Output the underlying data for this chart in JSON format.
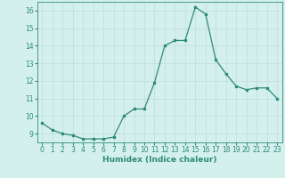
{
  "x": [
    0,
    1,
    2,
    3,
    4,
    5,
    6,
    7,
    8,
    9,
    10,
    11,
    12,
    13,
    14,
    15,
    16,
    17,
    18,
    19,
    20,
    21,
    22,
    23
  ],
  "y": [
    9.6,
    9.2,
    9.0,
    8.9,
    8.7,
    8.7,
    8.7,
    8.8,
    10.0,
    10.4,
    10.4,
    11.9,
    14.0,
    14.3,
    14.3,
    16.2,
    15.8,
    13.2,
    12.4,
    11.7,
    11.5,
    11.6,
    11.6,
    11.0
  ],
  "ylim": [
    8.5,
    16.5
  ],
  "yticks": [
    9,
    10,
    11,
    12,
    13,
    14,
    15,
    16
  ],
  "xlim": [
    -0.5,
    23.5
  ],
  "line_color": "#2e8b7a",
  "marker": "s",
  "marker_size": 1.8,
  "bg_color": "#d4f0ed",
  "grid_color": "#c0dcd8",
  "xlabel": "Humidex (Indice chaleur)",
  "xlabel_fontsize": 6.5,
  "tick_fontsize": 5.5
}
